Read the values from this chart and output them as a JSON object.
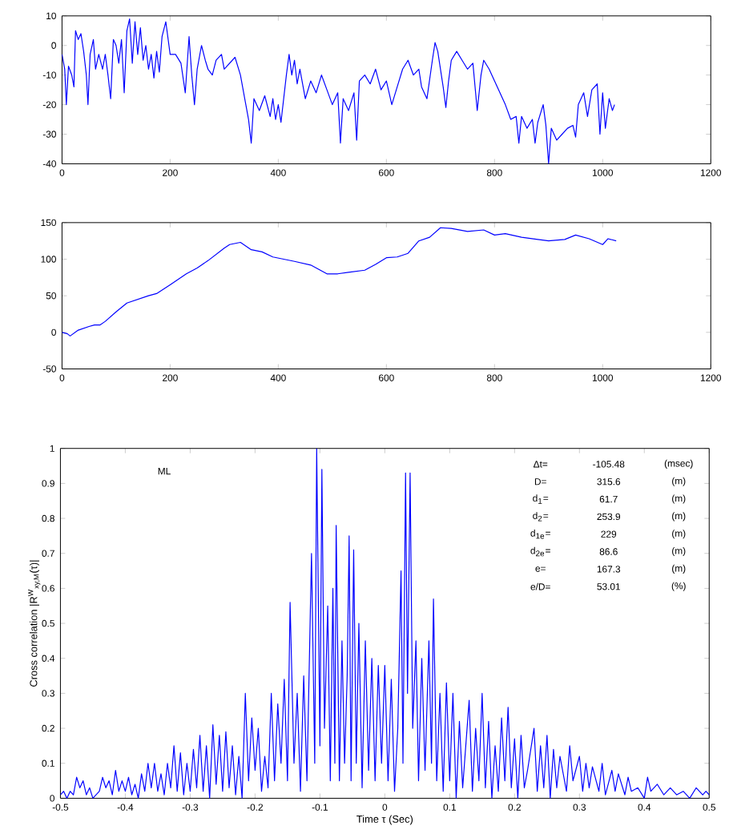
{
  "chart_data": [
    {
      "type": "line",
      "color": "#0000ff",
      "xlim": [
        0,
        1200
      ],
      "ylim": [
        -40,
        10
      ],
      "xticks": [
        0,
        200,
        400,
        600,
        800,
        1000,
        1200
      ],
      "yticks": [
        -40,
        -30,
        -20,
        -10,
        0,
        10
      ],
      "x": [
        0,
        5,
        8,
        12,
        18,
        22,
        25,
        30,
        35,
        40,
        45,
        48,
        52,
        58,
        62,
        68,
        75,
        80,
        85,
        90,
        95,
        100,
        105,
        110,
        115,
        120,
        125,
        130,
        135,
        140,
        145,
        150,
        155,
        160,
        165,
        170,
        175,
        180,
        185,
        192,
        200,
        210,
        220,
        228,
        235,
        240,
        245,
        250,
        258,
        265,
        270,
        278,
        285,
        295,
        300,
        310,
        320,
        330,
        340,
        345,
        350,
        355,
        365,
        375,
        385,
        390,
        395,
        400,
        405,
        415,
        420,
        425,
        430,
        435,
        440,
        450,
        460,
        470,
        480,
        490,
        500,
        510,
        515,
        520,
        530,
        540,
        545,
        550,
        560,
        570,
        580,
        590,
        600,
        610,
        620,
        630,
        640,
        650,
        660,
        665,
        675,
        685,
        690,
        695,
        700,
        705,
        710,
        715,
        720,
        730,
        740,
        750,
        760,
        768,
        775,
        780,
        790,
        800,
        810,
        820,
        830,
        840,
        845,
        850,
        860,
        870,
        875,
        880,
        890,
        895,
        900,
        905,
        915,
        925,
        935,
        945,
        950,
        955,
        965,
        972,
        980,
        990,
        995,
        1000,
        1005,
        1012,
        1018,
        1022
      ],
      "values": [
        -3,
        -8,
        -20,
        -7,
        -10,
        -14,
        5,
        2,
        4,
        -2,
        -10,
        -20,
        -3,
        2,
        -8,
        -3,
        -8,
        -3,
        -10,
        -18,
        2,
        0,
        -6,
        2,
        -16,
        5,
        9,
        -6,
        8,
        -3,
        6,
        -5,
        0,
        -8,
        -3,
        -11,
        -2,
        -9,
        3,
        8,
        -3,
        -3,
        -6,
        -16,
        3,
        -10,
        -20,
        -8,
        0,
        -5,
        -8,
        -10,
        -5,
        -3,
        -8,
        -6,
        -4,
        -10,
        -20,
        -25,
        -33,
        -18,
        -22,
        -17,
        -24,
        -18,
        -25,
        -20,
        -26,
        -10,
        -3,
        -10,
        -5,
        -13,
        -8,
        -18,
        -12,
        -16,
        -10,
        -15,
        -20,
        -16,
        -33,
        -18,
        -22,
        -16,
        -32,
        -12,
        -10,
        -13,
        -8,
        -15,
        -12,
        -20,
        -14,
        -8,
        -5,
        -10,
        -8,
        -14,
        -18,
        -5,
        1,
        -2,
        -8,
        -14,
        -21,
        -12,
        -5,
        -2,
        -5,
        -8,
        -6,
        -22,
        -10,
        -5,
        -8,
        -12,
        -16,
        -20,
        -25,
        -24,
        -33,
        -24,
        -28,
        -25,
        -33,
        -26,
        -20,
        -27,
        -40,
        -28,
        -32,
        -30,
        -28,
        -27,
        -31,
        -20,
        -16,
        -24,
        -15,
        -13,
        -30,
        -16,
        -28,
        -18,
        -22,
        -20
      ]
    },
    {
      "type": "line",
      "color": "#0000ff",
      "xlim": [
        0,
        1200
      ],
      "ylim": [
        -50,
        150
      ],
      "xticks": [
        0,
        200,
        400,
        600,
        800,
        1000,
        1200
      ],
      "yticks": [
        -50,
        0,
        50,
        100,
        150
      ],
      "x": [
        0,
        10,
        15,
        30,
        50,
        60,
        70,
        80,
        100,
        120,
        140,
        160,
        175,
        200,
        230,
        250,
        270,
        300,
        310,
        330,
        350,
        370,
        390,
        410,
        430,
        460,
        490,
        510,
        530,
        560,
        580,
        600,
        620,
        640,
        660,
        680,
        700,
        720,
        750,
        780,
        800,
        820,
        850,
        880,
        900,
        930,
        950,
        975,
        1000,
        1010,
        1025
      ],
      "values": [
        0,
        -2,
        -5,
        3,
        8,
        10,
        10,
        15,
        28,
        40,
        45,
        50,
        53,
        65,
        80,
        88,
        98,
        115,
        120,
        123,
        113,
        110,
        103,
        100,
        97,
        92,
        80,
        80,
        82,
        85,
        93,
        102,
        103,
        108,
        125,
        130,
        143,
        142,
        138,
        140,
        133,
        135,
        130,
        127,
        125,
        127,
        133,
        128,
        120,
        128,
        125
      ]
    },
    {
      "type": "line",
      "color": "#0000ff",
      "xlabel": "Time τ (Sec)",
      "ylabel": "Cross correlation |R$^{W}$$_{xy,M}$(τ)|",
      "xlim": [
        -0.5,
        0.5
      ],
      "ylim": [
        0,
        1
      ],
      "xticks": [
        -0.5,
        -0.4,
        -0.3,
        -0.2,
        -0.1,
        0,
        0.1,
        0.2,
        0.3,
        0.4,
        0.5
      ],
      "yticks": [
        0,
        0.1,
        0.2,
        0.3,
        0.4,
        0.5,
        0.6,
        0.7,
        0.8,
        0.9,
        1
      ],
      "annotations": [
        "ML",
        "Δt=",
        "-105.48",
        "(msec)",
        "D=",
        "315.6",
        "(m)",
        "d$_{1}$=",
        "61.7",
        "(m)",
        "d$_{2}$=",
        "253.9",
        "(m)",
        "d$_{1e}$=",
        "229",
        "(m)",
        "d$_{2e}$=",
        "86.6",
        "(m)",
        "e=",
        "167.3",
        "(m)",
        "e/D=",
        "53.01",
        "(%)"
      ],
      "x": [
        -0.5,
        -0.495,
        -0.49,
        -0.485,
        -0.48,
        -0.475,
        -0.47,
        -0.465,
        -0.46,
        -0.455,
        -0.45,
        -0.44,
        -0.435,
        -0.43,
        -0.425,
        -0.42,
        -0.415,
        -0.41,
        -0.405,
        -0.4,
        -0.395,
        -0.39,
        -0.385,
        -0.38,
        -0.375,
        -0.37,
        -0.365,
        -0.36,
        -0.355,
        -0.35,
        -0.345,
        -0.34,
        -0.335,
        -0.33,
        -0.325,
        -0.32,
        -0.315,
        -0.31,
        -0.305,
        -0.3,
        -0.295,
        -0.29,
        -0.285,
        -0.28,
        -0.275,
        -0.27,
        -0.265,
        -0.26,
        -0.255,
        -0.25,
        -0.245,
        -0.24,
        -0.235,
        -0.23,
        -0.225,
        -0.22,
        -0.215,
        -0.21,
        -0.205,
        -0.2,
        -0.195,
        -0.19,
        -0.185,
        -0.18,
        -0.175,
        -0.17,
        -0.165,
        -0.16,
        -0.155,
        -0.15,
        -0.146,
        -0.14,
        -0.135,
        -0.13,
        -0.125,
        -0.12,
        -0.113,
        -0.108,
        -0.105,
        -0.1,
        -0.097,
        -0.093,
        -0.088,
        -0.084,
        -0.08,
        -0.077,
        -0.075,
        -0.07,
        -0.066,
        -0.062,
        -0.058,
        -0.055,
        -0.052,
        -0.048,
        -0.044,
        -0.04,
        -0.035,
        -0.03,
        -0.025,
        -0.02,
        -0.015,
        -0.01,
        -0.005,
        0,
        0.005,
        0.01,
        0.015,
        0.02,
        0.025,
        0.028,
        0.032,
        0.035,
        0.039,
        0.043,
        0.048,
        0.052,
        0.057,
        0.062,
        0.068,
        0.072,
        0.075,
        0.08,
        0.085,
        0.09,
        0.095,
        0.1,
        0.105,
        0.11,
        0.115,
        0.12,
        0.13,
        0.135,
        0.14,
        0.145,
        0.15,
        0.155,
        0.16,
        0.165,
        0.17,
        0.175,
        0.18,
        0.185,
        0.19,
        0.195,
        0.2,
        0.205,
        0.21,
        0.215,
        0.22,
        0.23,
        0.235,
        0.24,
        0.245,
        0.25,
        0.255,
        0.26,
        0.265,
        0.27,
        0.28,
        0.285,
        0.29,
        0.3,
        0.305,
        0.31,
        0.315,
        0.32,
        0.33,
        0.335,
        0.34,
        0.35,
        0.355,
        0.36,
        0.37,
        0.375,
        0.38,
        0.39,
        0.4,
        0.405,
        0.41,
        0.42,
        0.43,
        0.44,
        0.45,
        0.46,
        0.47,
        0.48,
        0.49,
        0.495,
        0.5
      ],
      "values": [
        0.01,
        0.02,
        0,
        0.02,
        0.01,
        0.06,
        0.03,
        0.05,
        0.01,
        0.03,
        0,
        0.02,
        0.06,
        0.03,
        0.05,
        0.01,
        0.08,
        0.02,
        0.05,
        0.02,
        0.06,
        0.01,
        0.04,
        0,
        0.07,
        0.02,
        0.1,
        0.03,
        0.1,
        0.02,
        0.07,
        0.01,
        0.1,
        0.03,
        0.15,
        0.02,
        0.13,
        0.01,
        0.1,
        0.02,
        0.14,
        0.03,
        0.18,
        0.02,
        0.15,
        0,
        0.21,
        0.04,
        0.18,
        0.02,
        0.19,
        0.03,
        0.15,
        0.01,
        0.12,
        0,
        0.3,
        0.05,
        0.23,
        0.08,
        0.2,
        0.02,
        0.12,
        0.03,
        0.3,
        0.05,
        0.27,
        0.1,
        0.34,
        0.05,
        0.56,
        0.1,
        0.3,
        0.02,
        0.35,
        0.05,
        0.7,
        0.1,
        1,
        0.15,
        0.94,
        0.2,
        0.55,
        0.05,
        0.6,
        0.1,
        0.78,
        0.05,
        0.45,
        0.1,
        0.35,
        0.75,
        0.05,
        0.71,
        0.1,
        0.5,
        0.03,
        0.45,
        0.08,
        0.4,
        0.05,
        0.38,
        0.1,
        0.38,
        0.05,
        0.34,
        0.02,
        0.2,
        0.65,
        0.1,
        0.93,
        0.3,
        0.93,
        0.2,
        0.45,
        0.05,
        0.4,
        0.08,
        0.45,
        0.1,
        0.57,
        0.05,
        0.3,
        0.02,
        0.33,
        0.05,
        0.3,
        0,
        0.22,
        0.03,
        0.28,
        0.02,
        0.2,
        0.05,
        0.3,
        0.03,
        0.22,
        0,
        0.15,
        0.02,
        0.23,
        0.05,
        0.26,
        0.03,
        0.17,
        0,
        0.18,
        0.03,
        0.08,
        0.2,
        0.02,
        0.15,
        0.03,
        0.18,
        0,
        0.14,
        0.03,
        0.12,
        0.02,
        0.15,
        0.05,
        0.12,
        0.02,
        0.1,
        0.03,
        0.09,
        0.02,
        0.1,
        0.01,
        0.08,
        0.02,
        0.07,
        0.01,
        0.06,
        0.02,
        0.03,
        0,
        0.06,
        0.02,
        0.04,
        0.01,
        0.03,
        0.01,
        0.02,
        0,
        0.03,
        0.01,
        0.02,
        0.01
      ]
    }
  ]
}
